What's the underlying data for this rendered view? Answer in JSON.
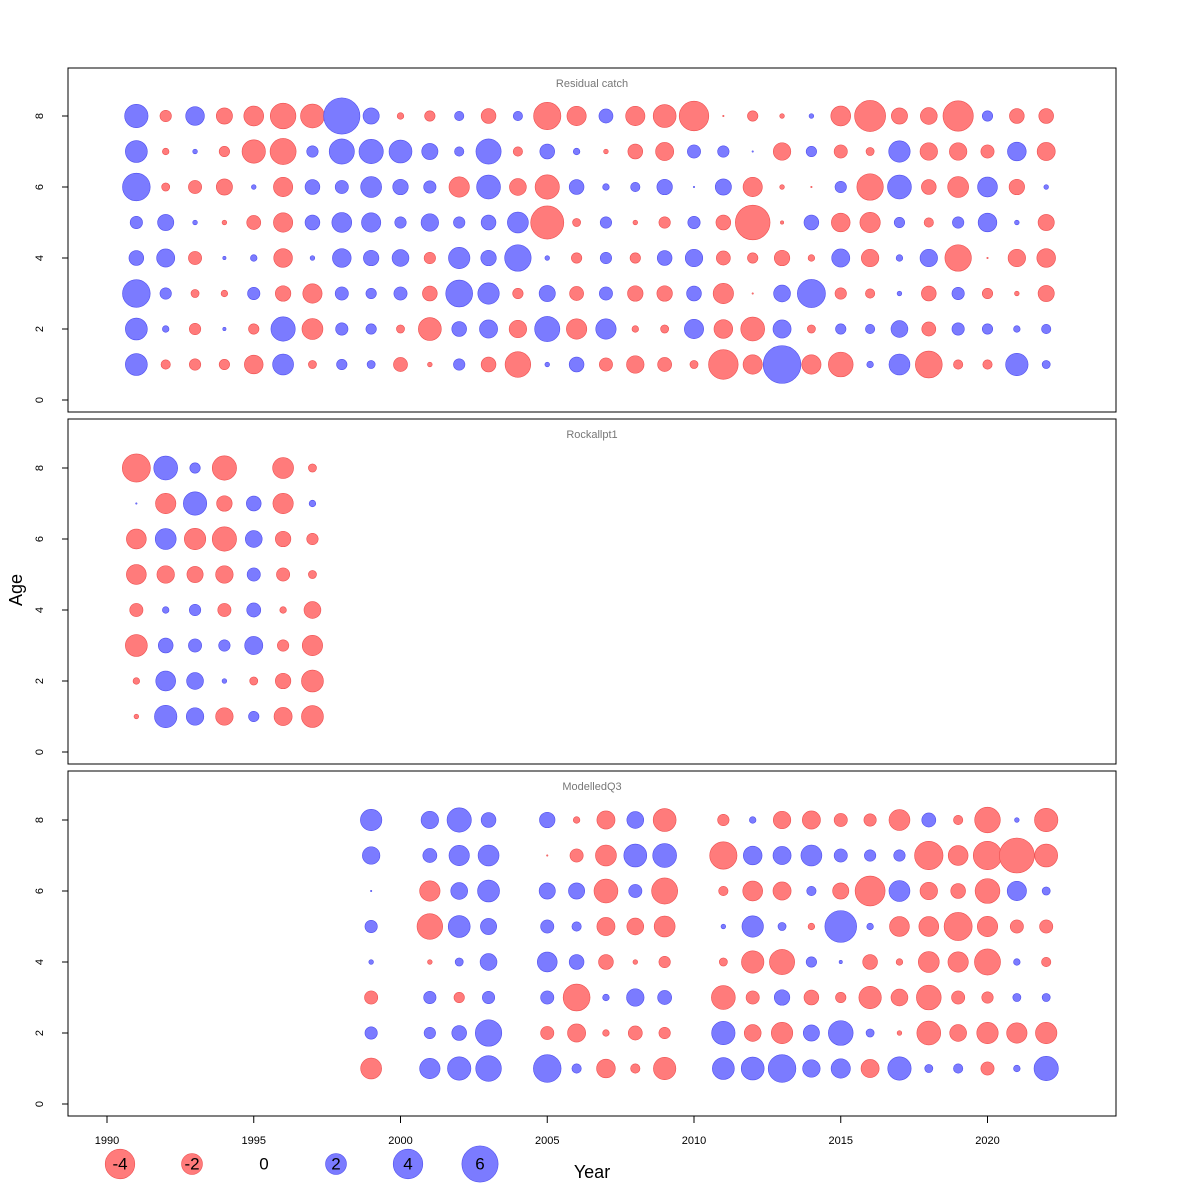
{
  "chart_data": {
    "type": "bubble",
    "xlabel": "Year",
    "ylabel": "Age",
    "xticks": [
      "1990",
      "1995",
      "2000",
      "2005",
      "2010",
      "2015",
      "2020"
    ],
    "yticks": [
      "0",
      "2",
      "4",
      "6",
      "8"
    ],
    "xlim": [
      1990,
      2022
    ],
    "ylim": [
      0,
      8
    ],
    "colors": {
      "positive": "#7b7bff",
      "negative": "#ff7b7b"
    },
    "legend": {
      "values": [
        -4,
        -2,
        0,
        2,
        4,
        6
      ],
      "labels": [
        "-4",
        "-2",
        "0",
        "2",
        "4",
        "6"
      ],
      "position": "bottom-left"
    },
    "panels": [
      {
        "title": "Residual catch",
        "years": [
          1991,
          1992,
          1993,
          1994,
          1995,
          1996,
          1997,
          1998,
          1999,
          2000,
          2001,
          2002,
          2003,
          2004,
          2005,
          2006,
          2007,
          2008,
          2009,
          2010,
          2011,
          2012,
          2013,
          2014,
          2015,
          2016,
          2017,
          2018,
          2019,
          2020,
          2021,
          2022
        ],
        "ages": [
          8,
          7,
          6,
          5,
          4,
          3,
          2,
          1
        ],
        "residuals": [
          [
            2.5,
            -0.6,
            1.6,
            -1.2,
            -1.8,
            -3.0,
            -2.6,
            6.0,
            1.2,
            -0.2,
            -0.5,
            0.4,
            -1.0,
            0.4,
            -3.4,
            -1.7,
            0.9,
            -1.7,
            -2.4,
            -4.0,
            -0.01,
            -0.5,
            -0.1,
            0.1,
            -1.8,
            -4.4,
            -1.2,
            -1.3,
            -4.2,
            0.5,
            -1.0,
            -1.0
          ],
          [
            2.2,
            -0.2,
            0.1,
            -0.5,
            -2.5,
            -3.1,
            0.6,
            2.9,
            2.7,
            2.4,
            1.2,
            0.4,
            2.9,
            -0.4,
            1.0,
            0.2,
            -0.1,
            -1.0,
            -1.5,
            0.8,
            0.6,
            0.01,
            -1.4,
            0.5,
            -0.8,
            -0.3,
            2.1,
            -1.4,
            -1.4,
            -0.8,
            1.6,
            -1.5
          ],
          [
            3.5,
            -0.3,
            -0.8,
            -1.2,
            0.1,
            -1.7,
            1.0,
            0.8,
            2.0,
            1.1,
            0.7,
            -1.9,
            2.6,
            -1.3,
            -2.7,
            1.0,
            0.2,
            0.4,
            1.1,
            0.01,
            1.2,
            -1.7,
            -0.1,
            -0.01,
            0.6,
            -3.2,
            2.6,
            -1.0,
            -2.0,
            1.8,
            -1.1,
            0.1
          ],
          [
            0.7,
            1.2,
            0.1,
            -0.1,
            -0.9,
            -1.7,
            1.0,
            1.8,
            1.7,
            0.6,
            1.4,
            0.6,
            1.0,
            2.0,
            -5.0,
            -0.3,
            0.6,
            -0.1,
            -0.6,
            0.7,
            -1.0,
            -5.5,
            -0.05,
            1.0,
            -1.6,
            -1.9,
            0.5,
            -0.4,
            0.6,
            1.6,
            0.1,
            -1.2
          ],
          [
            1.0,
            1.5,
            -0.8,
            0.05,
            0.2,
            -1.6,
            0.1,
            1.6,
            1.1,
            1.3,
            -0.6,
            2.1,
            1.1,
            3.2,
            0.1,
            -0.5,
            0.6,
            -0.5,
            1.0,
            1.4,
            -0.9,
            -0.5,
            -1.1,
            -0.2,
            1.5,
            -1.4,
            0.2,
            1.4,
            -3.2,
            -0.01,
            -1.4,
            -1.6
          ],
          [
            3.5,
            0.6,
            -0.3,
            -0.2,
            0.7,
            -1.1,
            -1.7,
            0.8,
            0.5,
            0.8,
            -1.0,
            3.3,
            2.1,
            -0.5,
            1.2,
            -0.9,
            0.8,
            -1.1,
            -1.1,
            1.0,
            -1.9,
            -0.01,
            1.3,
            3.6,
            -0.6,
            -0.4,
            0.1,
            -1.0,
            0.7,
            -0.5,
            -0.1,
            -1.2
          ],
          [
            2.2,
            0.2,
            -0.6,
            0.05,
            -0.5,
            2.7,
            -2.0,
            0.7,
            0.5,
            -0.3,
            -2.4,
            1.0,
            1.5,
            -1.4,
            2.9,
            -1.9,
            1.9,
            -0.2,
            -0.3,
            1.7,
            -1.6,
            -2.6,
            1.5,
            -0.3,
            0.5,
            0.4,
            1.3,
            -0.9,
            0.7,
            0.5,
            0.2,
            0.4
          ],
          [
            2.2,
            -0.4,
            -0.6,
            -0.5,
            -1.6,
            2.0,
            -0.3,
            0.5,
            0.3,
            -0.9,
            -0.1,
            0.6,
            -1.0,
            -3.0,
            0.1,
            1.0,
            -0.8,
            -1.4,
            -0.9,
            -0.3,
            -4.0,
            -1.7,
            6.5,
            -1.7,
            -2.8,
            0.2,
            2.0,
            -3.3,
            -0.4,
            -0.4,
            2.3,
            0.3
          ]
        ]
      },
      {
        "title": "Rockallpt1",
        "years": [
          1991,
          1992,
          1993,
          1994,
          1995,
          1996,
          1997
        ],
        "ages": [
          8,
          7,
          6,
          5,
          4,
          3,
          2,
          1
        ],
        "residuals": [
          [
            -3.6,
            2.6,
            0.5,
            -2.7,
            null,
            -2.0,
            -0.3
          ],
          [
            0.01,
            -1.9,
            2.5,
            -1.1,
            1.0,
            -1.9,
            0.2
          ],
          [
            -1.8,
            2.0,
            -2.1,
            -2.7,
            1.3,
            -1.1,
            -0.6
          ],
          [
            -1.8,
            -1.4,
            -1.2,
            -1.4,
            0.8,
            -0.8,
            -0.3
          ],
          [
            -0.8,
            0.2,
            0.6,
            -0.8,
            0.9,
            -0.2,
            -1.3
          ],
          [
            -2.2,
            1.0,
            0.8,
            0.6,
            1.5,
            -0.6,
            -1.9
          ],
          [
            -0.2,
            1.8,
            1.3,
            0.1,
            -0.3,
            -1.1,
            -2.2
          ],
          [
            -0.1,
            2.3,
            1.4,
            -1.4,
            0.5,
            -1.5,
            -2.2
          ]
        ]
      },
      {
        "title": "ModelledQ3",
        "years": [
          1999,
          2001,
          2002,
          2003,
          2005,
          2006,
          2007,
          2008,
          2009,
          2011,
          2012,
          2013,
          2014,
          2015,
          2016,
          2017,
          2018,
          2019,
          2020,
          2021,
          2022
        ],
        "ages": [
          8,
          7,
          6,
          5,
          4,
          3,
          2,
          1
        ],
        "residuals": [
          [
            2.1,
            1.4,
            2.7,
            1.0,
            1.1,
            -0.2,
            -1.5,
            1.3,
            -2.4,
            -0.6,
            0.2,
            -1.4,
            -1.5,
            -0.8,
            -0.7,
            -2.0,
            0.9,
            -0.4,
            -3.0,
            0.1,
            -2.5
          ],
          [
            1.4,
            0.9,
            1.9,
            2.0,
            -0.01,
            -0.8,
            -2.0,
            2.4,
            2.6,
            -3.4,
            1.6,
            1.5,
            2.0,
            0.8,
            0.6,
            0.6,
            -3.7,
            -1.8,
            -3.7,
            -5.6,
            -2.4
          ],
          [
            0.01,
            -1.9,
            1.3,
            2.2,
            1.2,
            1.2,
            -2.6,
            0.8,
            -3.1,
            -0.4,
            -1.8,
            -1.5,
            0.4,
            -1.2,
            -4.1,
            2.0,
            -1.4,
            -1.0,
            -2.8,
            1.7,
            0.3
          ],
          [
            0.7,
            -3.0,
            2.2,
            1.2,
            0.8,
            0.4,
            -1.5,
            -1.3,
            -2.0,
            0.1,
            2.1,
            0.3,
            -0.2,
            4.6,
            0.2,
            -1.8,
            -1.8,
            -3.6,
            -1.9,
            -0.8,
            -0.8
          ],
          [
            0.1,
            -0.1,
            0.3,
            1.3,
            1.8,
            1.0,
            -1.0,
            -0.1,
            -0.6,
            -0.3,
            -2.3,
            -2.9,
            0.5,
            0.05,
            -1.0,
            -0.2,
            -2.0,
            -1.9,
            -3.1,
            0.2,
            -0.4
          ],
          [
            -0.8,
            0.7,
            -0.5,
            0.7,
            0.8,
            -3.3,
            0.2,
            1.4,
            0.9,
            -2.6,
            -0.8,
            1.1,
            -1.0,
            -0.5,
            -2.3,
            -1.3,
            -2.8,
            -0.8,
            -0.6,
            0.3,
            0.3
          ],
          [
            0.7,
            0.6,
            1.0,
            3.2,
            -0.8,
            -1.5,
            -0.2,
            -0.9,
            -0.6,
            2.5,
            -1.3,
            -2.1,
            1.2,
            2.8,
            0.3,
            -0.1,
            -2.6,
            -1.3,
            -2.1,
            -1.9,
            -2.1
          ],
          [
            -2.0,
            1.9,
            2.5,
            3.0,
            3.5,
            0.4,
            -1.6,
            -0.4,
            -2.3,
            2.2,
            2.4,
            3.5,
            1.4,
            1.7,
            -1.5,
            2.5,
            0.3,
            0.4,
            -0.8,
            0.2,
            2.7
          ]
        ]
      }
    ]
  }
}
